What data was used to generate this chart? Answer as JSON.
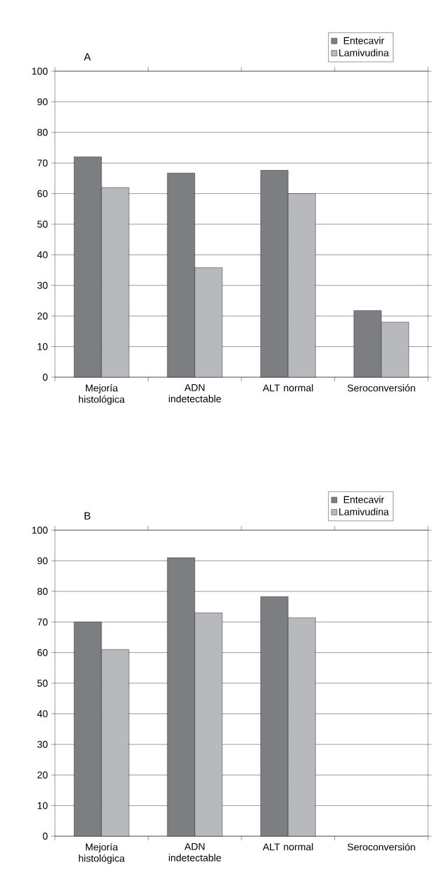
{
  "chart_data": [
    {
      "type": "bar",
      "title": "A",
      "categories": [
        "Mejoría histológica",
        "ADN indetectable",
        "ALT normal",
        "Seroconversión"
      ],
      "series": [
        {
          "name": "Entecavir",
          "color": "#7d7e82",
          "values": [
            72,
            66.7,
            67.6,
            21.8
          ]
        },
        {
          "name": "Lamivudina",
          "color": "#b8b9bd",
          "values": [
            62,
            35.8,
            60,
            18
          ]
        }
      ],
      "ylim": [
        0,
        100
      ],
      "yticks": [
        0,
        10,
        20,
        30,
        40,
        50,
        60,
        70,
        80,
        90,
        100
      ],
      "grid": "y",
      "legend": "top right"
    },
    {
      "type": "bar",
      "title": "B",
      "categories": [
        "Mejoría histológica",
        "ADN indetectable",
        "ALT normal",
        "Seroconversión"
      ],
      "series": [
        {
          "name": "Entecavir",
          "color": "#7d7e82",
          "values": [
            70,
            91,
            78.3,
            null
          ]
        },
        {
          "name": "Lamivudina",
          "color": "#b8b9bd",
          "values": [
            61,
            73,
            71.4,
            null
          ]
        }
      ],
      "ylim": [
        0,
        100
      ],
      "yticks": [
        0,
        10,
        20,
        30,
        40,
        50,
        60,
        70,
        80,
        90,
        100
      ],
      "grid": "y",
      "legend": "top right"
    }
  ]
}
